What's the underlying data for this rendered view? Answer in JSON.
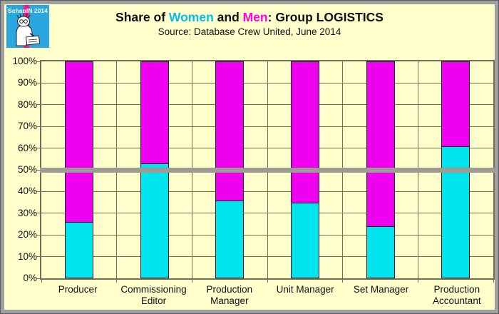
{
  "logo": {
    "text": "SchspIN 2014",
    "bg_color": "#2AA7DF",
    "stripe_color": "#EB1E8F"
  },
  "header": {
    "title_parts": [
      {
        "text": "Share of ",
        "color": "#111111"
      },
      {
        "text": "Women",
        "color": "#00BEEE"
      },
      {
        "text": " and ",
        "color": "#111111"
      },
      {
        "text": "Men",
        "color": "#FF00E6"
      },
      {
        "text": ": Group LOGISTICS",
        "color": "#111111"
      }
    ],
    "subtitle": "Source: Database Crew United, June 2014"
  },
  "chart_data": {
    "type": "bar",
    "stacked": true,
    "title": "Share of Women and Men: Group LOGISTICS",
    "subtitle": "Source: Database Crew United, June 2014",
    "categories": [
      "Producer",
      "Commissioning Editor",
      "Production Manager",
      "Unit Manager",
      "Set Manager",
      "Production Accountant"
    ],
    "series": [
      {
        "name": "Women",
        "color": "#00E4EE",
        "values": [
          26,
          53,
          36,
          35,
          24,
          61
        ]
      },
      {
        "name": "Men",
        "color": "#EE00EE",
        "values": [
          74,
          47,
          64,
          65,
          76,
          39
        ]
      }
    ],
    "ylim": [
      0,
      100
    ],
    "ytick_step": 10,
    "yticks": [
      "0%",
      "10%",
      "20%",
      "30%",
      "40%",
      "50%",
      "60%",
      "70%",
      "80%",
      "90%",
      "100%"
    ],
    "xlabel": "",
    "ylabel": "",
    "grid": true,
    "legend": "none",
    "reference_line": {
      "value": 50,
      "color": "#9c9c94",
      "thickness": 7
    }
  }
}
